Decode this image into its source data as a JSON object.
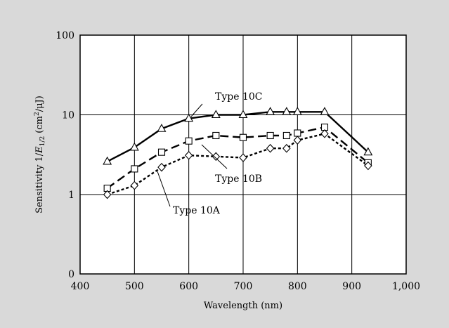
{
  "chart_data": {
    "type": "line",
    "title": "",
    "xlabel": "Wavelength (nm)",
    "ylabel_parts": {
      "main": "Sensitivity 1/",
      "var": "E",
      "sub": "1/2",
      "unit_open": " (cm",
      "unit_exp": "2",
      "unit_close": "/μJ)"
    },
    "xlim": [
      400,
      1000
    ],
    "ylim": [
      0,
      100
    ],
    "yscale": "log",
    "grid": true,
    "x_ticks": [
      400,
      500,
      600,
      700,
      800,
      900,
      1000
    ],
    "x_tick_labels": [
      "400",
      "500",
      "600",
      "700",
      "800",
      "900",
      "1,000"
    ],
    "y_ticks": [
      0,
      1,
      10,
      100
    ],
    "y_tick_labels": [
      "0",
      "1",
      "10",
      "100"
    ],
    "series": [
      {
        "name": "Type 10C",
        "marker": "triangle",
        "line_style": "solid",
        "x": [
          450,
          500,
          550,
          600,
          650,
          700,
          750,
          780,
          800,
          850,
          930
        ],
        "y": [
          2.6,
          3.9,
          6.7,
          9.0,
          10.0,
          10.0,
          10.9,
          10.9,
          10.9,
          10.9,
          3.4
        ]
      },
      {
        "name": "Type 10B",
        "marker": "square",
        "line_style": "dashed",
        "x": [
          450,
          500,
          550,
          600,
          650,
          700,
          750,
          780,
          800,
          850,
          930
        ],
        "y": [
          1.2,
          2.1,
          3.4,
          4.7,
          5.5,
          5.2,
          5.5,
          5.5,
          5.9,
          7.0,
          2.5
        ]
      },
      {
        "name": "Type 10A",
        "marker": "diamond",
        "line_style": "dotted",
        "x": [
          450,
          500,
          550,
          600,
          650,
          700,
          750,
          780,
          800,
          850,
          930
        ],
        "y": [
          1.0,
          1.3,
          2.2,
          3.1,
          3.0,
          2.9,
          3.8,
          3.8,
          4.8,
          5.8,
          2.3
        ]
      }
    ],
    "annotations": [
      {
        "series": "Type 10C",
        "text": "Type 10C"
      },
      {
        "series": "Type 10B",
        "text": "Type 10B"
      },
      {
        "series": "Type 10A",
        "text": "Type 10A"
      }
    ]
  }
}
